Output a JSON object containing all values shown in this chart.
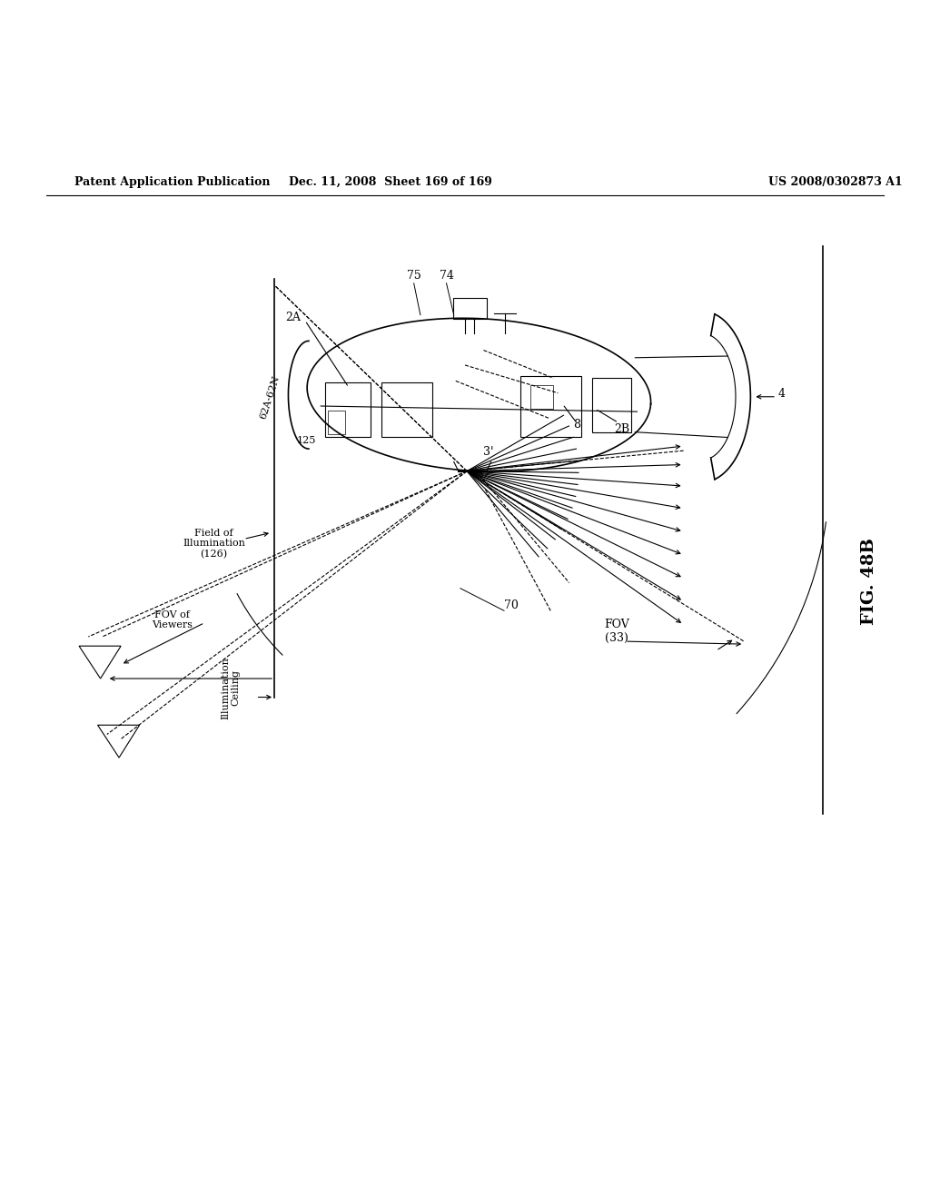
{
  "header_left": "Patent Application Publication",
  "header_middle": "Dec. 11, 2008  Sheet 169 of 169",
  "header_right": "US 2008/0302873 A1",
  "fig_label": "FIG. 48B",
  "bg_color": "#ffffff",
  "line_color": "#000000"
}
